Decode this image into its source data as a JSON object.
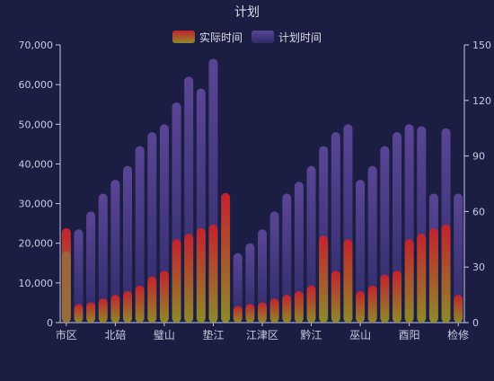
{
  "chart_data": {
    "type": "bar",
    "title": "计划",
    "legend_position": "top-center",
    "grid": false,
    "categories": [
      "市区",
      "",
      "",
      "",
      "北碚",
      "",
      "",
      "",
      "璧山",
      "",
      "",
      "",
      "垫江",
      "",
      "",
      "",
      "江津区",
      "",
      "",
      "",
      "黔江",
      "",
      "",
      "",
      "巫山",
      "",
      "",
      "",
      "酉阳",
      "",
      "",
      "",
      "检修"
    ],
    "x_tick_labels": [
      "市区",
      "北碚",
      "璧山",
      "垫江",
      "江津区",
      "黔江",
      "巫山",
      "酉阳",
      "检修"
    ],
    "y_left": {
      "ylim": [
        0,
        70000
      ],
      "ticks": [
        "0",
        "10,000",
        "20,000",
        "30,000",
        "40,000",
        "50,000",
        "60,000",
        "70,000"
      ]
    },
    "y_right": {
      "ylim": [
        0,
        150
      ],
      "ticks": [
        "0",
        "30",
        "60",
        "90",
        "120",
        "150"
      ]
    },
    "series": [
      {
        "name": "计划时间",
        "axis": "left",
        "values": [
          20500,
          23500,
          28000,
          32500,
          36000,
          39500,
          44500,
          48000,
          50000,
          55500,
          62000,
          59000,
          66500,
          null,
          17500,
          20000,
          23500,
          28000,
          32500,
          35500,
          39500,
          44500,
          48000,
          50000,
          36000,
          39500,
          44500,
          48000,
          50000,
          49500,
          32500,
          49000,
          32500
        ]
      },
      {
        "name": "实际时间",
        "axis": "right",
        "values": [
          51,
          10,
          11,
          13,
          15,
          17,
          20,
          25,
          28,
          45,
          48,
          51,
          53,
          70,
          9,
          10,
          11,
          13,
          15,
          17,
          20,
          47,
          28,
          45,
          17,
          20,
          26,
          28,
          45,
          48,
          51,
          53,
          15
        ]
      }
    ],
    "extra_overlay": {
      "index": 0,
      "axis": "left",
      "value": 18000
    }
  },
  "colors": {
    "background": "#1b1e42",
    "axis": "#c9cbe0",
    "title": "#dcdde8",
    "plan_top": "#5a4596",
    "plan_bottom": "#2d2a66",
    "actual_top": "#c4222e",
    "actual_bottom": "#8c8a2a"
  }
}
